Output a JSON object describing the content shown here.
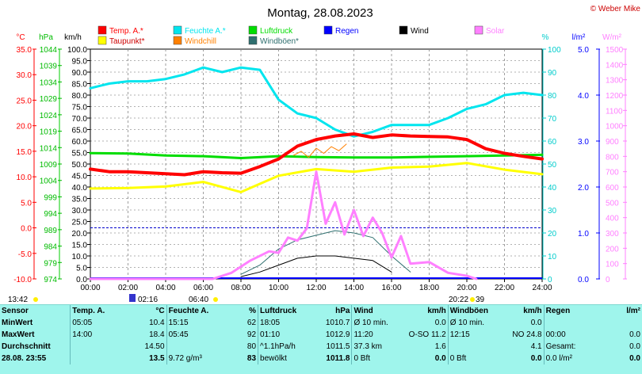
{
  "chart_data": {
    "type": "line",
    "title": "Montag, 28.08.2023",
    "credit": "© Weber Mike",
    "axes": {
      "temp": {
        "unit": "°C",
        "ticks": [
          "35.0",
          "30.0",
          "25.0",
          "20.0",
          "15.0",
          "10.0",
          "5.0",
          "0.0",
          "-5.0",
          "-10.0"
        ],
        "range": [
          -10,
          35
        ]
      },
      "pressure": {
        "unit": "hPa",
        "ticks": [
          "1044",
          "1039",
          "1034",
          "1029",
          "1024",
          "1019",
          "1014",
          "1009",
          "1004",
          "999",
          "994",
          "989",
          "984",
          "979",
          "974"
        ],
        "range": [
          974,
          1044
        ]
      },
      "wind": {
        "unit": "km/h",
        "ticks": [
          "100.0",
          "95.0",
          "90.0",
          "85.0",
          "80.0",
          "75.0",
          "70.0",
          "65.0",
          "60.0",
          "55.0",
          "50.0",
          "45.0",
          "40.0",
          "35.0",
          "30.0",
          "25.0",
          "20.0",
          "15.0",
          "10.0",
          "5.0",
          "0.0"
        ],
        "range": [
          0,
          100
        ]
      },
      "humidity": {
        "unit": "%",
        "ticks": [
          "100",
          "90",
          "80",
          "70",
          "60",
          "50",
          "40",
          "30",
          "20",
          "10",
          "0"
        ],
        "range": [
          0,
          100
        ]
      },
      "rain": {
        "unit": "l/m²",
        "ticks": [
          "5.0",
          "4.0",
          "3.0",
          "2.0",
          "1.0",
          "0.0"
        ],
        "range": [
          0,
          5
        ]
      },
      "solar": {
        "unit": "W/m²",
        "ticks": [
          "1500",
          "1400",
          "1300",
          "1200",
          "1100",
          "1000",
          "900",
          "800",
          "700",
          "600",
          "500",
          "400",
          "300",
          "200",
          "100",
          "0"
        ],
        "range": [
          0,
          1500
        ]
      },
      "x_ticks": [
        "00:00",
        "02:00",
        "04:00",
        "06:00",
        "08:00",
        "10:00",
        "12:00",
        "14:00",
        "16:00",
        "18:00",
        "20:00",
        "22:00",
        "24:00"
      ],
      "x_range": [
        0,
        24
      ]
    },
    "legend": [
      {
        "name": "Temp. A.*",
        "color": "#ff0000"
      },
      {
        "name": "Feuchte A.*",
        "color": "#00e5ee"
      },
      {
        "name": "Luftdruck",
        "color": "#00dd00"
      },
      {
        "name": "Regen",
        "color": "#0000ff"
      },
      {
        "name": "Wind",
        "color": "#000000"
      },
      {
        "name": "Solar",
        "color": "#ff80ff"
      },
      {
        "name": "Taupunkt*",
        "color": "#ffff00"
      },
      {
        "name": "Windchill",
        "color": "#ff8000"
      },
      {
        "name": "Windböen*",
        "color": "#2f6f6f"
      }
    ],
    "series": {
      "temp": {
        "x": [
          0,
          1,
          2,
          3,
          4,
          5,
          6,
          7,
          8,
          9,
          10,
          11,
          12,
          13,
          14,
          15,
          16,
          17,
          18,
          19,
          20,
          21,
          22,
          23,
          24
        ],
        "y": [
          11.5,
          11.0,
          11.0,
          10.8,
          10.6,
          10.4,
          11.0,
          10.8,
          10.7,
          12.0,
          13.5,
          16.0,
          17.3,
          18.0,
          18.4,
          17.7,
          18.2,
          18.0,
          17.9,
          17.8,
          17.3,
          15.5,
          14.6,
          14.0,
          13.5
        ]
      },
      "humidity": {
        "x": [
          0,
          1,
          2,
          3,
          4,
          5,
          6,
          7,
          8,
          9,
          10,
          11,
          12,
          13,
          14,
          15,
          16,
          17,
          18,
          19,
          20,
          21,
          22,
          23,
          24
        ],
        "y": [
          83,
          85,
          86,
          86,
          87,
          89,
          92,
          90,
          92,
          91,
          78,
          72,
          70,
          65,
          62,
          64,
          67,
          67,
          67,
          70,
          74,
          76,
          80,
          81,
          80
        ]
      },
      "pressure": {
        "x": [
          0,
          2,
          4,
          6,
          8,
          10,
          12,
          14,
          16,
          18,
          20,
          22,
          24
        ],
        "y": [
          1012.3,
          1012.2,
          1011.6,
          1011.4,
          1010.8,
          1011.4,
          1011.1,
          1011.0,
          1011.0,
          1011.2,
          1011.4,
          1011.6,
          1011.8
        ]
      },
      "dewpoint": {
        "x": [
          0,
          2,
          4,
          6,
          8,
          10,
          12,
          14,
          16,
          18,
          20,
          22,
          24
        ],
        "y": [
          7.7,
          7.8,
          8.1,
          9.0,
          7.0,
          10.2,
          11.5,
          11.0,
          11.8,
          12.0,
          12.7,
          11.4,
          10.5
        ]
      },
      "windchill": {
        "x": [
          10.8,
          11.2,
          11.6,
          12.0,
          12.4,
          12.8,
          13.2,
          13.6
        ],
        "y": [
          14.2,
          15.0,
          13.8,
          15.6,
          14.6,
          15.9,
          15.1,
          16.4
        ]
      },
      "solar": {
        "x": [
          0,
          6.5,
          7.5,
          8.5,
          9.5,
          10,
          10.5,
          11,
          11.5,
          12,
          12.5,
          13,
          13.5,
          14,
          14.5,
          15,
          15.5,
          16,
          16.5,
          17,
          18,
          19,
          19.5,
          20,
          20.5
        ],
        "y": [
          0,
          0,
          40,
          120,
          180,
          170,
          270,
          250,
          330,
          700,
          360,
          500,
          290,
          450,
          280,
          400,
          300,
          140,
          280,
          100,
          110,
          40,
          30,
          20,
          0
        ]
      },
      "gusts": {
        "x": [
          8,
          9,
          10,
          11,
          12,
          13,
          14,
          15,
          16,
          17
        ],
        "y": [
          2,
          6,
          13,
          17,
          19,
          21,
          20,
          18,
          10,
          3
        ]
      },
      "wind": {
        "x": [
          8,
          9,
          10,
          11,
          12,
          13,
          14,
          15,
          16
        ],
        "y": [
          1,
          3,
          6,
          9,
          10,
          10,
          9,
          8,
          3
        ]
      },
      "rain": {
        "x": [
          0,
          24
        ],
        "y": [
          0,
          0
        ]
      }
    },
    "reference_lines": {
      "rain_level": 1.0,
      "temp_zero": 0.0
    },
    "bottom_marks": {
      "left_time": "13:42",
      "sunrise": "02:16",
      "moon": "06:40",
      "sunset": "20:22",
      "sunset_suffix": "39"
    }
  },
  "stats": {
    "headers": [
      "Sensor",
      "Temp. A.",
      "°C",
      "Feuchte A.",
      "%",
      "Luftdruck",
      "hPa",
      "Wind",
      "km/h",
      "Windböen",
      "km/h",
      "Regen",
      "l/m²"
    ],
    "rows": [
      [
        "MinWert",
        "05:05",
        "10.4",
        "15:15",
        "62",
        "18:05",
        "1010.7",
        "Ø 10 min.",
        "0.0",
        "Ø 10 min.",
        "0.0",
        "",
        ""
      ],
      [
        "MaxWert",
        "14:00",
        "18.4",
        "05:45",
        "92",
        "01:10",
        "1012.9",
        "11:20",
        "O-SO 11.2",
        "12:15",
        "NO 24.8",
        "00:00",
        "0.0"
      ],
      [
        "Durchschnitt",
        "",
        "14.50",
        "",
        "80",
        "^1.1hPa/h",
        "1011.5",
        "37.3 km",
        "1.6",
        "",
        "4.1",
        "Gesamt:",
        "0.0"
      ],
      [
        "28.08. 23:55",
        "",
        "13.5",
        "9.72 g/m³",
        "83",
        "bewölkt",
        "1011.8",
        "0 Bft",
        "0.0",
        "0 Bft",
        "0.0",
        "0.0 l/m²",
        "0.0"
      ]
    ]
  }
}
